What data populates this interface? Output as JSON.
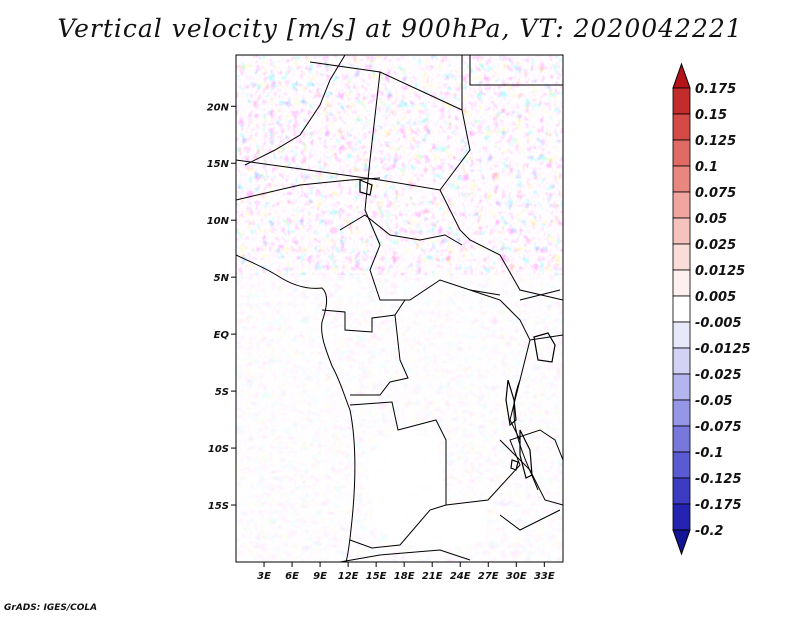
{
  "title": "Vertical velocity [m/s] at 900hPa, VT: 2020042221",
  "credit": "GrADS: IGES/COLA",
  "map": {
    "lon_range": [
      0,
      35
    ],
    "lat_range": [
      -20,
      24.5
    ],
    "lat_ticks": [
      {
        "value": 20,
        "label": "20N"
      },
      {
        "value": 15,
        "label": "15N"
      },
      {
        "value": 10,
        "label": "10N"
      },
      {
        "value": 5,
        "label": "5N"
      },
      {
        "value": 0,
        "label": "EQ"
      },
      {
        "value": -5,
        "label": "5S"
      },
      {
        "value": -10,
        "label": "10S"
      },
      {
        "value": -15,
        "label": "15S"
      }
    ],
    "lon_ticks": [
      {
        "value": 3,
        "label": "3E"
      },
      {
        "value": 6,
        "label": "6E"
      },
      {
        "value": 9,
        "label": "9E"
      },
      {
        "value": 12,
        "label": "12E"
      },
      {
        "value": 15,
        "label": "15E"
      },
      {
        "value": 18,
        "label": "18E"
      },
      {
        "value": 21,
        "label": "21E"
      },
      {
        "value": 24,
        "label": "24E"
      },
      {
        "value": 27,
        "label": "27E"
      },
      {
        "value": 30,
        "label": "30E"
      },
      {
        "value": 33,
        "label": "33E"
      }
    ]
  },
  "colorbar": {
    "levels": [
      "0.175",
      "0.15",
      "0.125",
      "0.1",
      "0.075",
      "0.05",
      "0.025",
      "0.0125",
      "0.005",
      "-0.005",
      "-0.0125",
      "-0.025",
      "-0.05",
      "-0.075",
      "-0.1",
      "-0.125",
      "-0.175",
      "-0.2"
    ],
    "colors": [
      "#b4141a",
      "#c32c2c",
      "#d44a46",
      "#e06a64",
      "#e8877f",
      "#f0a59e",
      "#f6c2bc",
      "#fadcd8",
      "#fdf0ee",
      "#ffffff",
      "#e8e8fb",
      "#d2d2f5",
      "#b4b4ef",
      "#9696e6",
      "#7878dc",
      "#5a5ad2",
      "#3c3cc3",
      "#2424b0",
      "#141496"
    ]
  }
}
